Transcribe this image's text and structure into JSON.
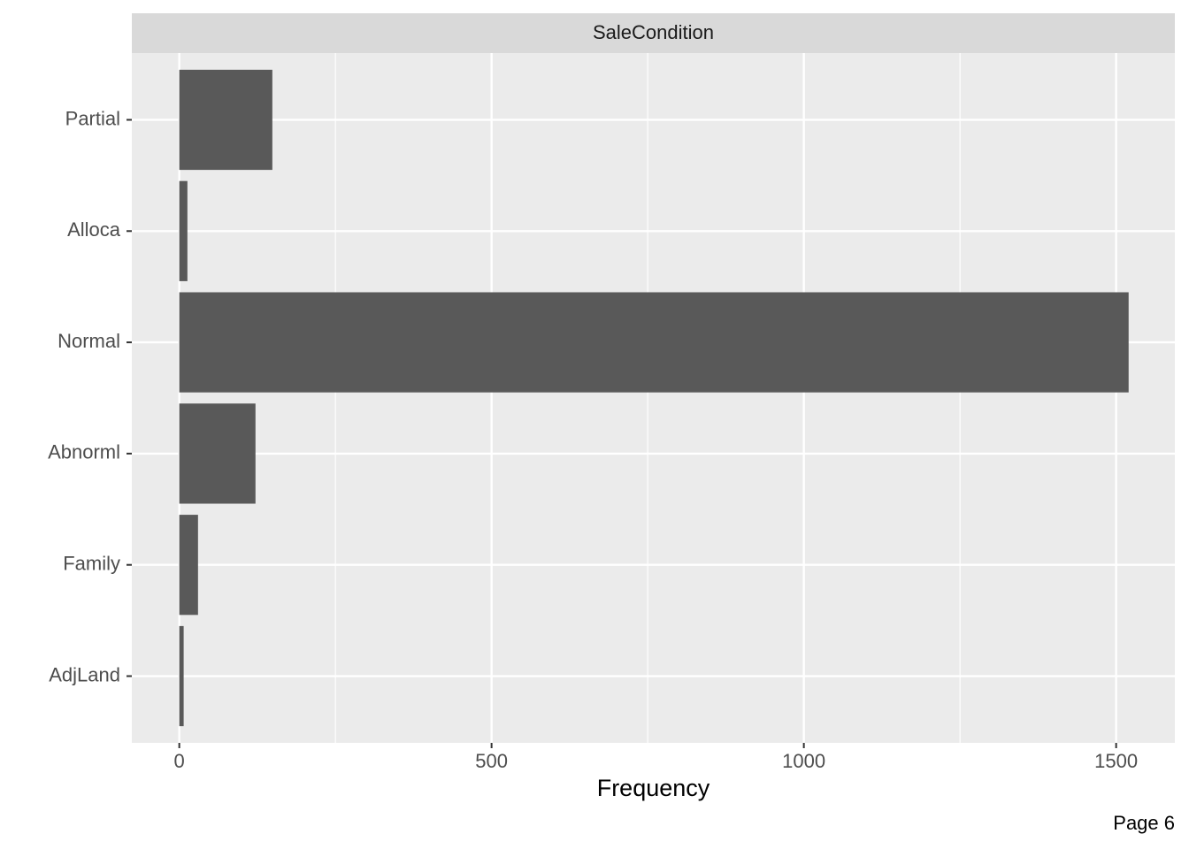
{
  "chart_data": {
    "type": "barh",
    "strip_title": "SaleCondition",
    "x_label": "Frequency",
    "annotation": "Page 6",
    "categories": [
      "AdjLand",
      "Family",
      "Abnorml",
      "Normal",
      "Alloca",
      "Partial"
    ],
    "values": [
      7,
      30,
      122,
      1520,
      13,
      149
    ],
    "color": "#595959",
    "xlim": [
      -76,
      1594
    ],
    "xticks": [
      0,
      500,
      1000,
      1500
    ],
    "minor_xticks": [
      250,
      750,
      1250
    ],
    "grid": true
  }
}
